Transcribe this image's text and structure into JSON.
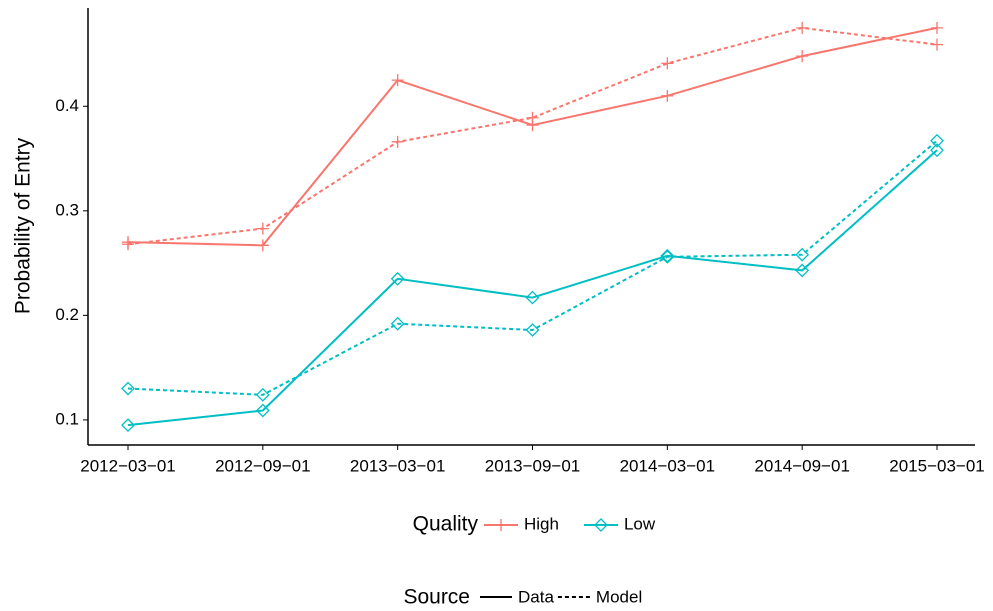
{
  "chart_data": {
    "type": "line",
    "y_label": "Probability of Entry",
    "categories": [
      "2012−03−01",
      "2012−09−01",
      "2013−03−01",
      "2013−09−01",
      "2014−03−01",
      "2014−09−01",
      "2015−03−01"
    ],
    "ylim": [
      0.076,
      0.494
    ],
    "yticks": [
      0.1,
      0.2,
      0.3,
      0.4
    ],
    "grid": false,
    "quality_legend_title": "Quality",
    "source_legend_title": "Source",
    "sources": [
      {
        "name": "Data",
        "dash": "solid"
      },
      {
        "name": "Model",
        "dash": "dashed"
      }
    ],
    "series": [
      {
        "name": "High",
        "source": "Data",
        "color": "#F8766D",
        "marker": "plus",
        "values": [
          0.27,
          0.267,
          0.425,
          0.382,
          0.41,
          0.448,
          0.475
        ]
      },
      {
        "name": "High",
        "source": "Model",
        "color": "#F8766D",
        "marker": "plus",
        "values": [
          0.268,
          0.283,
          0.366,
          0.389,
          0.441,
          0.475,
          0.459
        ]
      },
      {
        "name": "Low",
        "source": "Data",
        "color": "#00BFC4",
        "marker": "diamond",
        "values": [
          0.095,
          0.109,
          0.235,
          0.217,
          0.257,
          0.243,
          0.358
        ]
      },
      {
        "name": "Low",
        "source": "Model",
        "color": "#00BFC4",
        "marker": "diamond",
        "values": [
          0.13,
          0.124,
          0.192,
          0.186,
          0.256,
          0.258,
          0.367
        ]
      }
    ]
  }
}
